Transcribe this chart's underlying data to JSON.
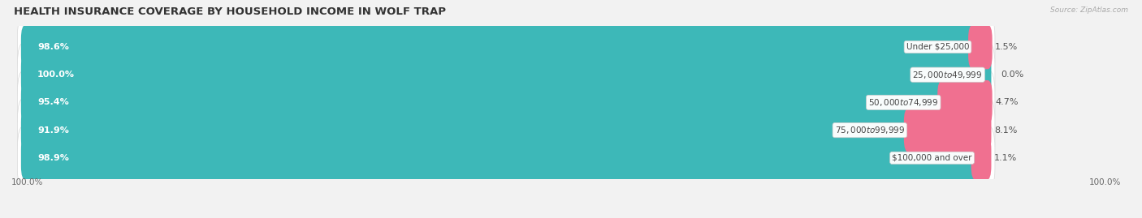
{
  "title": "HEALTH INSURANCE COVERAGE BY HOUSEHOLD INCOME IN WOLF TRAP",
  "source": "Source: ZipAtlas.com",
  "categories": [
    "Under $25,000",
    "$25,000 to $49,999",
    "$50,000 to $74,999",
    "$75,000 to $99,999",
    "$100,000 and over"
  ],
  "with_coverage": [
    98.6,
    100.0,
    95.4,
    91.9,
    98.9
  ],
  "without_coverage": [
    1.5,
    0.0,
    4.7,
    8.1,
    1.1
  ],
  "color_with": "#3db8b8",
  "color_without": "#f07090",
  "bg_color": "#f2f2f2",
  "bar_bg": "#ffffff",
  "title_fontsize": 9.5,
  "label_fontsize": 8,
  "cat_fontsize": 7.5,
  "tick_fontsize": 7.5,
  "legend_fontsize": 8,
  "x_left_label": "100.0%",
  "x_right_label": "100.0%",
  "total_width": 100.0
}
